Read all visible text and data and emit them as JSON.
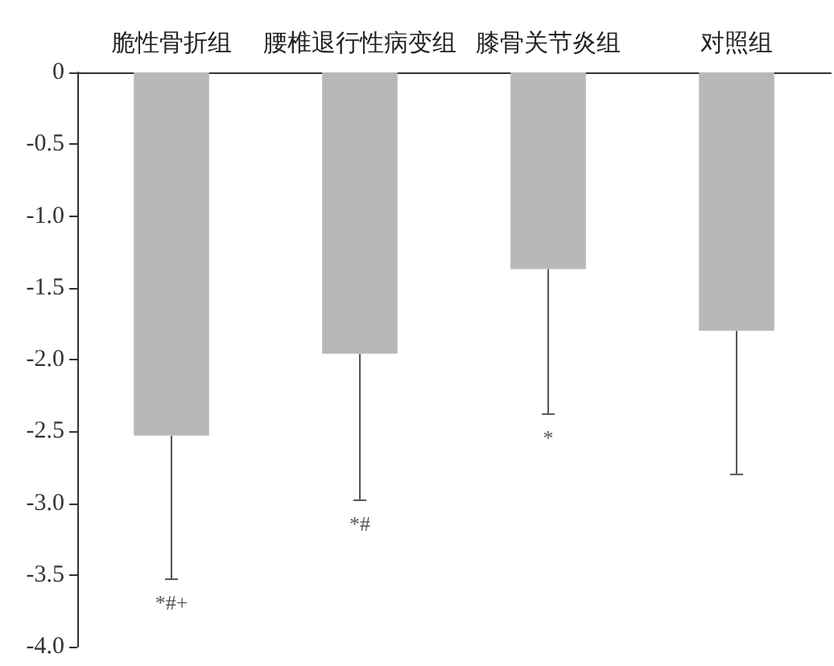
{
  "chart_data": {
    "type": "bar",
    "categories": [
      "脆性骨折组",
      "腰椎退行性病变组",
      "膝骨关节炎组",
      "对照组"
    ],
    "values": [
      -2.53,
      -1.96,
      -1.37,
      -1.8
    ],
    "errors": [
      [
        -3.53,
        -2.53
      ],
      [
        -2.98,
        -1.96
      ],
      [
        -2.38,
        -1.37
      ],
      [
        -2.8,
        -1.8
      ]
    ],
    "color": "#b8b8b8",
    "ylim": [
      -4.0,
      0
    ],
    "yticks": [
      0,
      {
        "value": -0.5,
        "label": "-0.5"
      },
      {
        "value": -1.0,
        "label": "-1.0"
      },
      {
        "value": -1.5,
        "label": "-1.5"
      },
      {
        "value": -2.0,
        "label": "-2.0"
      },
      {
        "value": -2.5,
        "label": "-2.5"
      },
      {
        "value": -3.0,
        "label": "-3.0"
      },
      {
        "value": -3.5,
        "label": "-3.5"
      },
      {
        "value": -4.0,
        "label": "-4.0"
      }
    ],
    "annotations": [
      "*#+",
      "*#",
      "*"
    ],
    "grid": false
  }
}
